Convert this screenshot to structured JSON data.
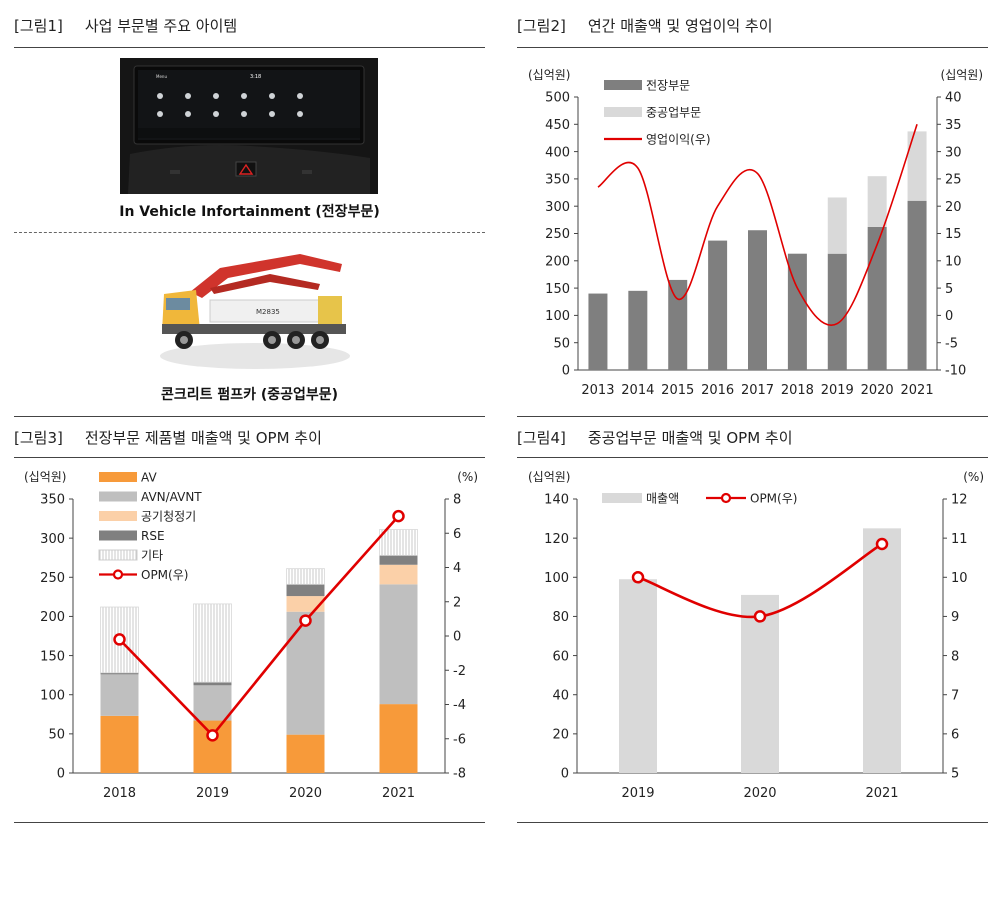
{
  "fig1": {
    "tag": "[그림1]",
    "title": "사업 부문별 주요 아이템",
    "caption1": "In Vehicle Infortainment (전장부문)",
    "caption2": "콘크리트 펌프카 (중공업부문)",
    "screen_status": "3:18",
    "screen_label": "Menu",
    "truck_badge": "M2835"
  },
  "fig2": {
    "tag": "[그림2]",
    "title": "연간 매출액 및 영업이익 추이",
    "chart_data": {
      "type": "bar",
      "title": "연간 매출액 및 영업이익 추이",
      "left_unit": "(십억원)",
      "right_unit": "(십억원)",
      "categories": [
        "2013",
        "2014",
        "2015",
        "2016",
        "2017",
        "2018",
        "2019",
        "2020",
        "2021"
      ],
      "ylim": [
        0,
        500
      ],
      "yticks": [
        0,
        50,
        100,
        150,
        200,
        250,
        300,
        350,
        400,
        450,
        500
      ],
      "y2lim": [
        -10,
        40
      ],
      "y2ticks": [
        -10,
        -5,
        0,
        5,
        10,
        15,
        20,
        25,
        30,
        35,
        40
      ],
      "series": [
        {
          "name": "전장부문",
          "type": "bar-stack",
          "color": "#7f7f7f",
          "values": [
            140,
            145,
            165,
            237,
            256,
            213,
            213,
            262,
            310
          ]
        },
        {
          "name": "중공업부문",
          "type": "bar-stack",
          "color": "#d9d9d9",
          "values": [
            0,
            0,
            0,
            0,
            0,
            0,
            103,
            93,
            127
          ]
        },
        {
          "name": "영업이익(우)",
          "type": "line",
          "axis": "right",
          "color": "#e00000",
          "values": [
            23.5,
            27,
            3,
            20,
            26,
            5,
            -1.5,
            13,
            35
          ]
        }
      ]
    }
  },
  "fig3": {
    "tag": "[그림3]",
    "title": "전장부문 제품별 매출액 및 OPM 추이",
    "chart_data": {
      "type": "bar",
      "title": "전장부문 제품별 매출액 및 OPM 추이",
      "left_unit": "(십억원)",
      "right_unit": "(%)",
      "categories": [
        "2018",
        "2019",
        "2020",
        "2021"
      ],
      "ylim": [
        0,
        350
      ],
      "yticks": [
        0,
        50,
        100,
        150,
        200,
        250,
        300,
        350
      ],
      "y2lim": [
        -8,
        8
      ],
      "y2ticks": [
        -8,
        -6,
        -4,
        -2,
        0,
        2,
        4,
        6,
        8
      ],
      "series": [
        {
          "name": "AV",
          "type": "bar-stack",
          "color": "#f79a3a",
          "values": [
            73,
            67,
            49,
            88
          ]
        },
        {
          "name": "AVN/AVNT",
          "type": "bar-stack",
          "color": "#bfbfbf",
          "values": [
            53,
            45,
            157,
            153
          ]
        },
        {
          "name": "공기청정기",
          "type": "bar-stack",
          "color": "#fbd0a8",
          "values": [
            0,
            0,
            20,
            25
          ]
        },
        {
          "name": "RSE",
          "type": "bar-stack",
          "color": "#808080",
          "values": [
            2,
            4,
            15,
            12
          ]
        },
        {
          "name": "기타",
          "type": "bar-stack",
          "color": "#f2f2f2",
          "pattern": "vertical-hatch",
          "values": [
            84,
            100,
            20,
            33
          ]
        },
        {
          "name": "OPM(우)",
          "type": "line",
          "axis": "right",
          "color": "#e00000",
          "marker": "circle",
          "values": [
            -0.2,
            -5.8,
            0.9,
            7.0
          ]
        }
      ]
    }
  },
  "fig4": {
    "tag": "[그림4]",
    "title": "중공업부문 매출액 및 OPM 추이",
    "chart_data": {
      "type": "bar",
      "title": "중공업부문 매출액 및 OPM 추이",
      "left_unit": "(십억원)",
      "right_unit": "(%)",
      "categories": [
        "2019",
        "2020",
        "2021"
      ],
      "ylim": [
        0,
        140
      ],
      "yticks": [
        0,
        20,
        40,
        60,
        80,
        100,
        120,
        140
      ],
      "y2lim": [
        5,
        12
      ],
      "y2ticks": [
        5,
        6,
        7,
        8,
        9,
        10,
        11,
        12
      ],
      "series": [
        {
          "name": "매출액",
          "type": "bar",
          "color": "#d9d9d9",
          "values": [
            99,
            91,
            125
          ]
        },
        {
          "name": "OPM(우)",
          "type": "line",
          "axis": "right",
          "color": "#e00000",
          "marker": "circle",
          "values": [
            10.0,
            9.0,
            10.85
          ]
        }
      ]
    }
  }
}
